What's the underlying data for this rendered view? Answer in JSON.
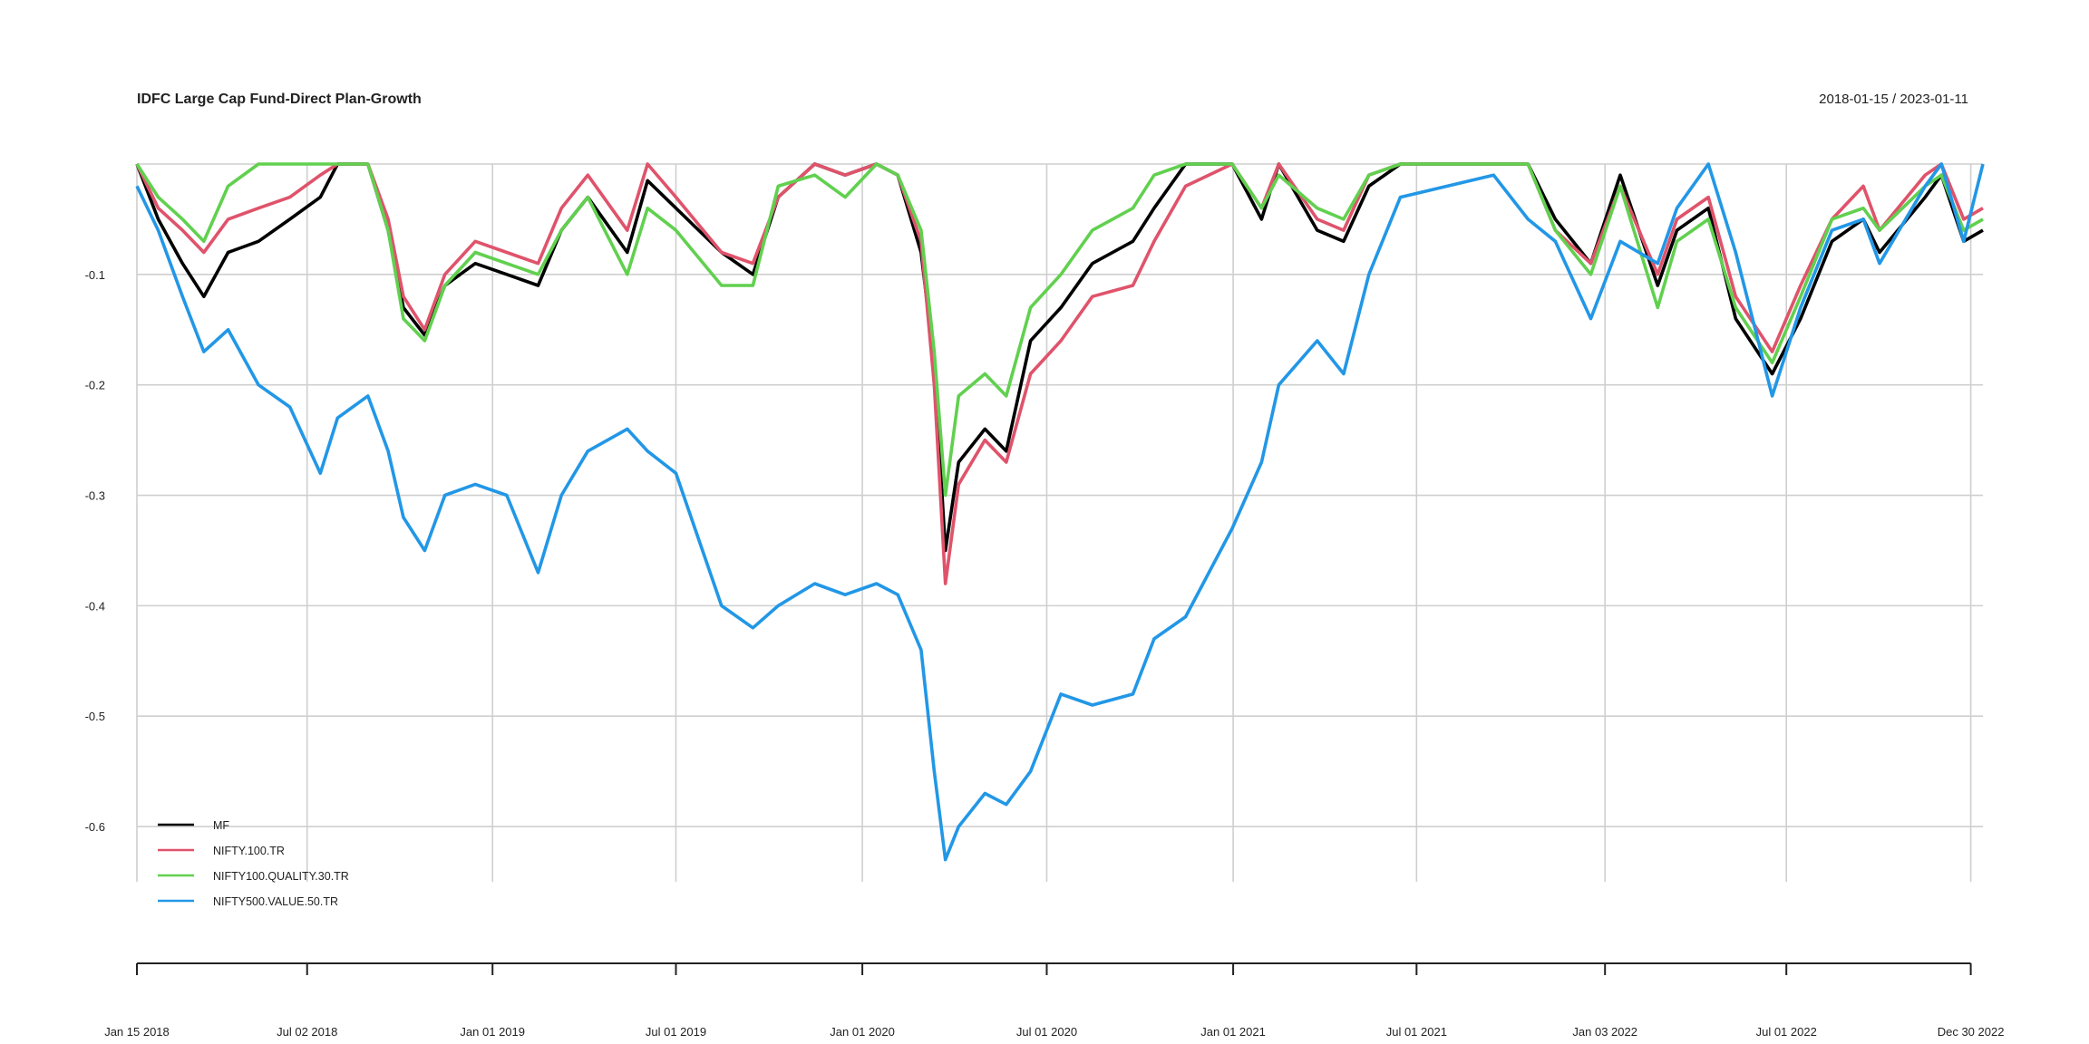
{
  "chart_data": {
    "type": "line",
    "title": "IDFC Large Cap Fund-Direct Plan-Growth",
    "date_range": "2018-01-15 / 2023-01-11",
    "x_start": "2018-01-15",
    "x_end": "2023-01-11",
    "ylim": [
      -0.65,
      0.0
    ],
    "y_ticks": [
      -0.1,
      -0.2,
      -0.3,
      -0.4,
      -0.5,
      -0.6
    ],
    "y_tick_labels": [
      "-0.1",
      "-0.2",
      "-0.3",
      "-0.4",
      "-0.5",
      "-0.6"
    ],
    "x_ticks": [
      {
        "date": "2018-01-15",
        "label": "Jan 15 2018"
      },
      {
        "date": "2018-07-02",
        "label": "Jul 02 2018"
      },
      {
        "date": "2019-01-01",
        "label": "Jan 01 2019"
      },
      {
        "date": "2019-07-01",
        "label": "Jul 01 2019"
      },
      {
        "date": "2020-01-01",
        "label": "Jan 01 2020"
      },
      {
        "date": "2020-07-01",
        "label": "Jul 01 2020"
      },
      {
        "date": "2021-01-01",
        "label": "Jan 01 2021"
      },
      {
        "date": "2021-07-01",
        "label": "Jul 01 2021"
      },
      {
        "date": "2022-01-03",
        "label": "Jan 03 2022"
      },
      {
        "date": "2022-07-01",
        "label": "Jul 01 2022"
      },
      {
        "date": "2022-12-30",
        "label": "Dec 30 2022"
      }
    ],
    "grid": true,
    "legend_position": "bottom-left",
    "series": [
      {
        "name": "MF",
        "color": "#000000",
        "points": [
          [
            "2018-01-15",
            0.0
          ],
          [
            "2018-02-05",
            -0.05
          ],
          [
            "2018-03-01",
            -0.09
          ],
          [
            "2018-03-22",
            -0.12
          ],
          [
            "2018-04-15",
            -0.08
          ],
          [
            "2018-05-15",
            -0.07
          ],
          [
            "2018-06-15",
            -0.05
          ],
          [
            "2018-07-15",
            -0.03
          ],
          [
            "2018-08-01",
            0.0
          ],
          [
            "2018-08-31",
            0.0
          ],
          [
            "2018-09-20",
            -0.06
          ],
          [
            "2018-10-05",
            -0.13
          ],
          [
            "2018-10-26",
            -0.155
          ],
          [
            "2018-11-15",
            -0.11
          ],
          [
            "2018-12-15",
            -0.09
          ],
          [
            "2019-01-15",
            -0.1
          ],
          [
            "2019-02-15",
            -0.11
          ],
          [
            "2019-03-10",
            -0.06
          ],
          [
            "2019-04-05",
            -0.03
          ],
          [
            "2019-05-14",
            -0.08
          ],
          [
            "2019-06-03",
            -0.015
          ],
          [
            "2019-07-01",
            -0.04
          ],
          [
            "2019-08-15",
            -0.08
          ],
          [
            "2019-09-15",
            -0.1
          ],
          [
            "2019-10-10",
            -0.03
          ],
          [
            "2019-11-15",
            0.0
          ],
          [
            "2019-12-15",
            -0.01
          ],
          [
            "2020-01-15",
            0.0
          ],
          [
            "2020-02-05",
            -0.01
          ],
          [
            "2020-02-28",
            -0.08
          ],
          [
            "2020-03-12",
            -0.18
          ],
          [
            "2020-03-23",
            -0.35
          ],
          [
            "2020-04-05",
            -0.27
          ],
          [
            "2020-05-01",
            -0.24
          ],
          [
            "2020-05-22",
            -0.26
          ],
          [
            "2020-06-15",
            -0.16
          ],
          [
            "2020-07-15",
            -0.13
          ],
          [
            "2020-08-15",
            -0.09
          ],
          [
            "2020-09-24",
            -0.07
          ],
          [
            "2020-10-15",
            -0.04
          ],
          [
            "2020-11-15",
            0.0
          ],
          [
            "2020-12-31",
            0.0
          ],
          [
            "2021-01-29",
            -0.05
          ],
          [
            "2021-02-15",
            0.0
          ],
          [
            "2021-03-25",
            -0.06
          ],
          [
            "2021-04-20",
            -0.07
          ],
          [
            "2021-05-15",
            -0.02
          ],
          [
            "2021-06-15",
            0.0
          ],
          [
            "2021-09-15",
            0.0
          ],
          [
            "2021-10-19",
            0.0
          ],
          [
            "2021-11-15",
            -0.05
          ],
          [
            "2021-12-20",
            -0.09
          ],
          [
            "2022-01-18",
            -0.01
          ],
          [
            "2022-02-24",
            -0.11
          ],
          [
            "2022-03-15",
            -0.06
          ],
          [
            "2022-04-15",
            -0.04
          ],
          [
            "2022-05-12",
            -0.14
          ],
          [
            "2022-06-17",
            -0.19
          ],
          [
            "2022-07-15",
            -0.14
          ],
          [
            "2022-08-15",
            -0.07
          ],
          [
            "2022-09-15",
            -0.05
          ],
          [
            "2022-10-01",
            -0.08
          ],
          [
            "2022-11-15",
            -0.03
          ],
          [
            "2022-12-01",
            -0.01
          ],
          [
            "2022-12-23",
            -0.07
          ],
          [
            "2023-01-11",
            -0.06
          ]
        ]
      },
      {
        "name": "NIFTY.100.TR",
        "color": "#DF536B",
        "points": [
          [
            "2018-01-15",
            0.0
          ],
          [
            "2018-02-05",
            -0.04
          ],
          [
            "2018-03-01",
            -0.06
          ],
          [
            "2018-03-22",
            -0.08
          ],
          [
            "2018-04-15",
            -0.05
          ],
          [
            "2018-05-15",
            -0.04
          ],
          [
            "2018-06-15",
            -0.03
          ],
          [
            "2018-07-15",
            -0.01
          ],
          [
            "2018-08-01",
            0.0
          ],
          [
            "2018-08-31",
            0.0
          ],
          [
            "2018-09-20",
            -0.05
          ],
          [
            "2018-10-05",
            -0.12
          ],
          [
            "2018-10-26",
            -0.15
          ],
          [
            "2018-11-15",
            -0.1
          ],
          [
            "2018-12-15",
            -0.07
          ],
          [
            "2019-01-15",
            -0.08
          ],
          [
            "2019-02-15",
            -0.09
          ],
          [
            "2019-03-10",
            -0.04
          ],
          [
            "2019-04-05",
            -0.01
          ],
          [
            "2019-05-14",
            -0.06
          ],
          [
            "2019-06-03",
            0.0
          ],
          [
            "2019-07-01",
            -0.03
          ],
          [
            "2019-08-15",
            -0.08
          ],
          [
            "2019-09-15",
            -0.09
          ],
          [
            "2019-10-10",
            -0.03
          ],
          [
            "2019-11-15",
            0.0
          ],
          [
            "2019-12-15",
            -0.01
          ],
          [
            "2020-01-15",
            0.0
          ],
          [
            "2020-02-05",
            -0.01
          ],
          [
            "2020-02-28",
            -0.07
          ],
          [
            "2020-03-12",
            -0.2
          ],
          [
            "2020-03-23",
            -0.38
          ],
          [
            "2020-04-05",
            -0.29
          ],
          [
            "2020-05-01",
            -0.25
          ],
          [
            "2020-05-22",
            -0.27
          ],
          [
            "2020-06-15",
            -0.19
          ],
          [
            "2020-07-15",
            -0.16
          ],
          [
            "2020-08-15",
            -0.12
          ],
          [
            "2020-09-24",
            -0.11
          ],
          [
            "2020-10-15",
            -0.07
          ],
          [
            "2020-11-15",
            -0.02
          ],
          [
            "2020-12-31",
            0.0
          ],
          [
            "2021-01-29",
            -0.04
          ],
          [
            "2021-02-15",
            0.0
          ],
          [
            "2021-03-25",
            -0.05
          ],
          [
            "2021-04-20",
            -0.06
          ],
          [
            "2021-05-15",
            -0.01
          ],
          [
            "2021-06-15",
            0.0
          ],
          [
            "2021-09-15",
            0.0
          ],
          [
            "2021-10-19",
            0.0
          ],
          [
            "2021-11-15",
            -0.06
          ],
          [
            "2021-12-20",
            -0.09
          ],
          [
            "2022-01-18",
            -0.02
          ],
          [
            "2022-02-24",
            -0.1
          ],
          [
            "2022-03-15",
            -0.05
          ],
          [
            "2022-04-15",
            -0.03
          ],
          [
            "2022-05-12",
            -0.12
          ],
          [
            "2022-06-17",
            -0.17
          ],
          [
            "2022-07-15",
            -0.11
          ],
          [
            "2022-08-15",
            -0.05
          ],
          [
            "2022-09-15",
            -0.02
          ],
          [
            "2022-10-01",
            -0.06
          ],
          [
            "2022-11-15",
            -0.01
          ],
          [
            "2022-12-01",
            0.0
          ],
          [
            "2022-12-23",
            -0.05
          ],
          [
            "2023-01-11",
            -0.04
          ]
        ]
      },
      {
        "name": "NIFTY100.QUALITY.30.TR",
        "color": "#61D04F",
        "points": [
          [
            "2018-01-15",
            0.0
          ],
          [
            "2018-02-05",
            -0.03
          ],
          [
            "2018-03-01",
            -0.05
          ],
          [
            "2018-03-22",
            -0.07
          ],
          [
            "2018-04-15",
            -0.02
          ],
          [
            "2018-05-15",
            0.0
          ],
          [
            "2018-06-15",
            0.0
          ],
          [
            "2018-07-15",
            0.0
          ],
          [
            "2018-08-01",
            0.0
          ],
          [
            "2018-08-31",
            0.0
          ],
          [
            "2018-09-20",
            -0.06
          ],
          [
            "2018-10-05",
            -0.14
          ],
          [
            "2018-10-26",
            -0.16
          ],
          [
            "2018-11-15",
            -0.11
          ],
          [
            "2018-12-15",
            -0.08
          ],
          [
            "2019-01-15",
            -0.09
          ],
          [
            "2019-02-15",
            -0.1
          ],
          [
            "2019-03-10",
            -0.06
          ],
          [
            "2019-04-05",
            -0.03
          ],
          [
            "2019-05-14",
            -0.1
          ],
          [
            "2019-06-03",
            -0.04
          ],
          [
            "2019-07-01",
            -0.06
          ],
          [
            "2019-08-15",
            -0.11
          ],
          [
            "2019-09-15",
            -0.11
          ],
          [
            "2019-10-10",
            -0.02
          ],
          [
            "2019-11-15",
            -0.01
          ],
          [
            "2019-12-15",
            -0.03
          ],
          [
            "2020-01-15",
            0.0
          ],
          [
            "2020-02-05",
            -0.01
          ],
          [
            "2020-02-28",
            -0.06
          ],
          [
            "2020-03-12",
            -0.17
          ],
          [
            "2020-03-23",
            -0.3
          ],
          [
            "2020-04-05",
            -0.21
          ],
          [
            "2020-05-01",
            -0.19
          ],
          [
            "2020-05-22",
            -0.21
          ],
          [
            "2020-06-15",
            -0.13
          ],
          [
            "2020-07-15",
            -0.1
          ],
          [
            "2020-08-15",
            -0.06
          ],
          [
            "2020-09-24",
            -0.04
          ],
          [
            "2020-10-15",
            -0.01
          ],
          [
            "2020-11-15",
            0.0
          ],
          [
            "2020-12-31",
            0.0
          ],
          [
            "2021-01-29",
            -0.04
          ],
          [
            "2021-02-15",
            -0.01
          ],
          [
            "2021-03-25",
            -0.04
          ],
          [
            "2021-04-20",
            -0.05
          ],
          [
            "2021-05-15",
            -0.01
          ],
          [
            "2021-06-15",
            0.0
          ],
          [
            "2021-09-15",
            0.0
          ],
          [
            "2021-10-19",
            0.0
          ],
          [
            "2021-11-15",
            -0.06
          ],
          [
            "2021-12-20",
            -0.1
          ],
          [
            "2022-01-18",
            -0.02
          ],
          [
            "2022-02-24",
            -0.13
          ],
          [
            "2022-03-15",
            -0.07
          ],
          [
            "2022-04-15",
            -0.05
          ],
          [
            "2022-05-12",
            -0.13
          ],
          [
            "2022-06-17",
            -0.18
          ],
          [
            "2022-07-15",
            -0.12
          ],
          [
            "2022-08-15",
            -0.05
          ],
          [
            "2022-09-15",
            -0.04
          ],
          [
            "2022-10-01",
            -0.06
          ],
          [
            "2022-11-15",
            -0.02
          ],
          [
            "2022-12-01",
            -0.01
          ],
          [
            "2022-12-23",
            -0.06
          ],
          [
            "2023-01-11",
            -0.05
          ]
        ]
      },
      {
        "name": "NIFTY500.VALUE.50.TR",
        "color": "#2297E6",
        "points": [
          [
            "2018-01-15",
            -0.02
          ],
          [
            "2018-02-05",
            -0.06
          ],
          [
            "2018-03-01",
            -0.12
          ],
          [
            "2018-03-22",
            -0.17
          ],
          [
            "2018-04-15",
            -0.15
          ],
          [
            "2018-05-15",
            -0.2
          ],
          [
            "2018-06-15",
            -0.22
          ],
          [
            "2018-07-15",
            -0.28
          ],
          [
            "2018-08-01",
            -0.23
          ],
          [
            "2018-08-31",
            -0.21
          ],
          [
            "2018-09-20",
            -0.26
          ],
          [
            "2018-10-05",
            -0.32
          ],
          [
            "2018-10-26",
            -0.35
          ],
          [
            "2018-11-15",
            -0.3
          ],
          [
            "2018-12-15",
            -0.29
          ],
          [
            "2019-01-15",
            -0.3
          ],
          [
            "2019-02-15",
            -0.37
          ],
          [
            "2019-03-10",
            -0.3
          ],
          [
            "2019-04-05",
            -0.26
          ],
          [
            "2019-05-14",
            -0.24
          ],
          [
            "2019-06-03",
            -0.26
          ],
          [
            "2019-07-01",
            -0.28
          ],
          [
            "2019-08-15",
            -0.4
          ],
          [
            "2019-09-15",
            -0.42
          ],
          [
            "2019-10-10",
            -0.4
          ],
          [
            "2019-11-15",
            -0.38
          ],
          [
            "2019-12-15",
            -0.39
          ],
          [
            "2020-01-15",
            -0.38
          ],
          [
            "2020-02-05",
            -0.39
          ],
          [
            "2020-02-28",
            -0.44
          ],
          [
            "2020-03-12",
            -0.55
          ],
          [
            "2020-03-23",
            -0.63
          ],
          [
            "2020-04-05",
            -0.6
          ],
          [
            "2020-05-01",
            -0.57
          ],
          [
            "2020-05-22",
            -0.58
          ],
          [
            "2020-06-15",
            -0.55
          ],
          [
            "2020-07-15",
            -0.48
          ],
          [
            "2020-08-15",
            -0.49
          ],
          [
            "2020-09-24",
            -0.48
          ],
          [
            "2020-10-15",
            -0.43
          ],
          [
            "2020-11-15",
            -0.41
          ],
          [
            "2020-12-31",
            -0.33
          ],
          [
            "2021-01-29",
            -0.27
          ],
          [
            "2021-02-15",
            -0.2
          ],
          [
            "2021-03-25",
            -0.16
          ],
          [
            "2021-04-20",
            -0.19
          ],
          [
            "2021-05-15",
            -0.1
          ],
          [
            "2021-06-15",
            -0.03
          ],
          [
            "2021-09-15",
            -0.01
          ],
          [
            "2021-10-19",
            -0.05
          ],
          [
            "2021-11-15",
            -0.07
          ],
          [
            "2021-12-20",
            -0.14
          ],
          [
            "2022-01-18",
            -0.07
          ],
          [
            "2022-02-24",
            -0.09
          ],
          [
            "2022-03-15",
            -0.04
          ],
          [
            "2022-04-15",
            0.0
          ],
          [
            "2022-05-12",
            -0.08
          ],
          [
            "2022-06-17",
            -0.21
          ],
          [
            "2022-07-15",
            -0.13
          ],
          [
            "2022-08-15",
            -0.06
          ],
          [
            "2022-09-15",
            -0.05
          ],
          [
            "2022-10-01",
            -0.09
          ],
          [
            "2022-11-15",
            -0.02
          ],
          [
            "2022-12-01",
            0.0
          ],
          [
            "2022-12-23",
            -0.07
          ],
          [
            "2023-01-11",
            0.0
          ]
        ]
      }
    ]
  }
}
